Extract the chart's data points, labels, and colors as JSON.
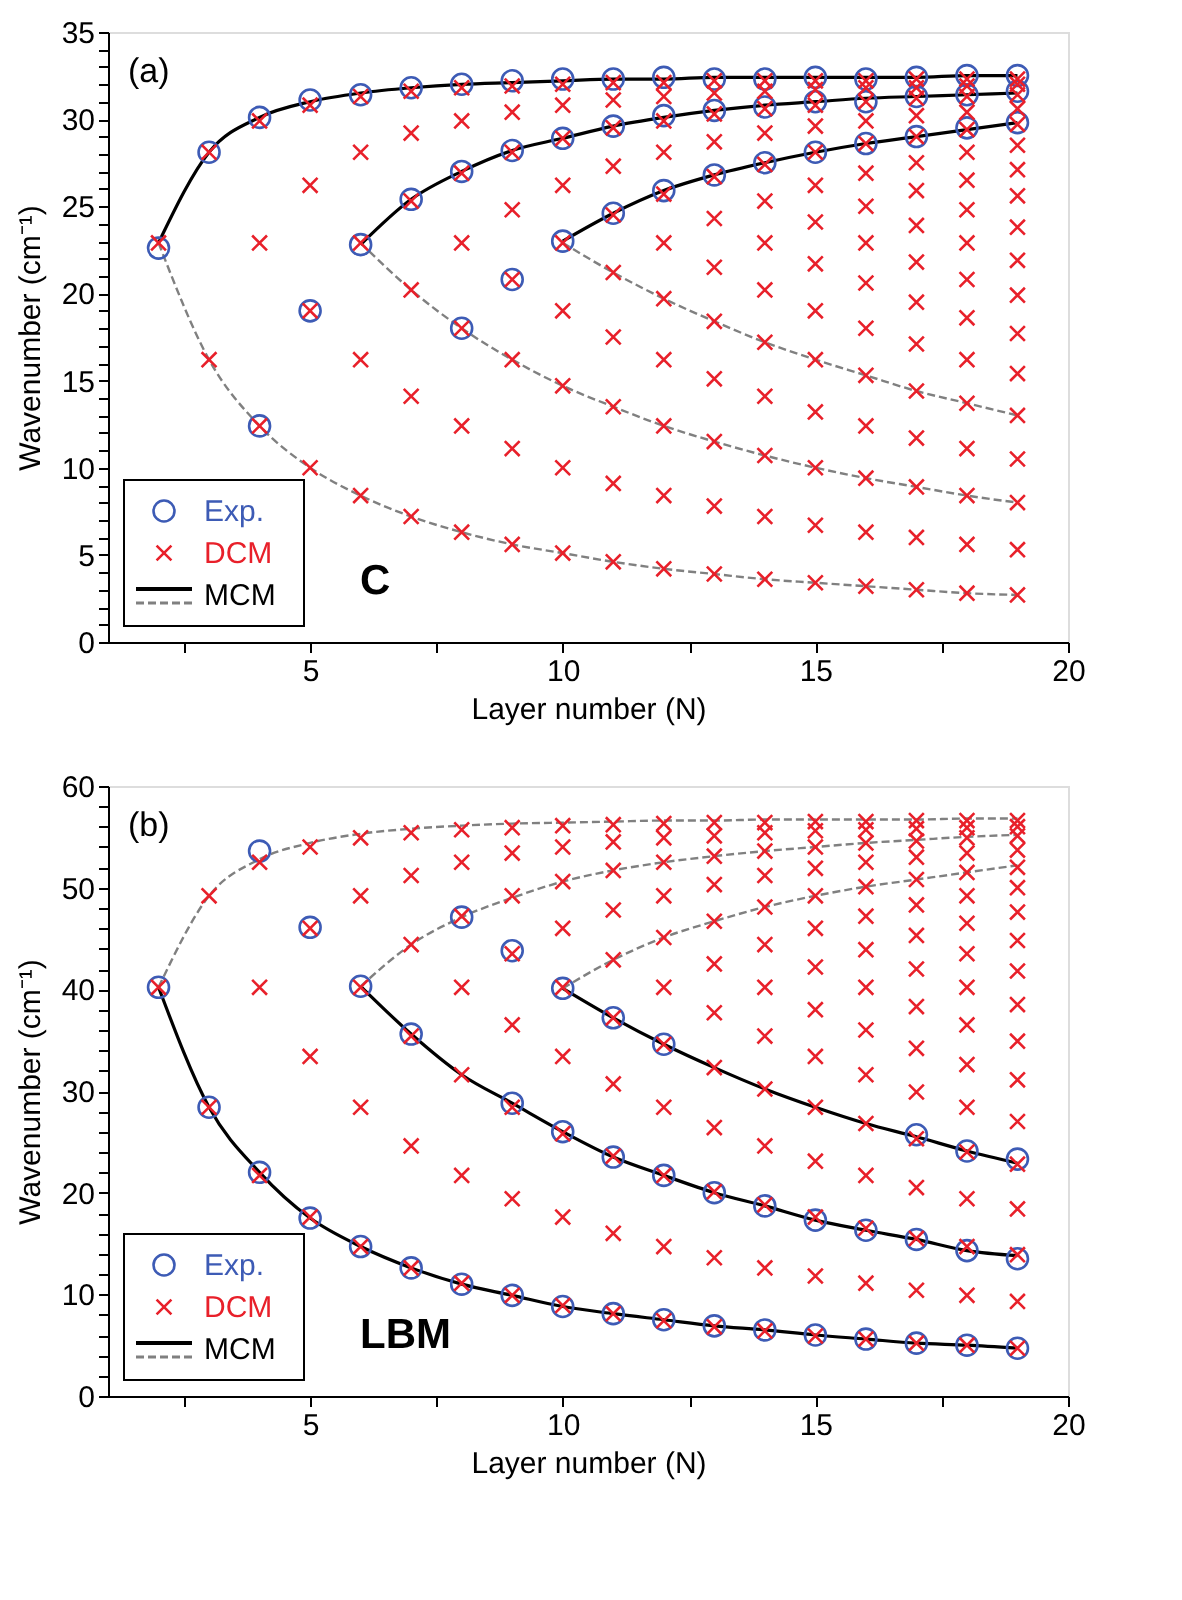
{
  "chart_data": [
    {
      "type": "scatter",
      "xlabel": "Layer number (N)",
      "ylabel": "Wavenumber (cm⁻¹)",
      "annotations": [
        "(a)",
        "C"
      ],
      "legend": "bottom left",
      "xlim": [
        1,
        20
      ],
      "xticks": [
        {
          "value": 2.5,
          "label": null
        },
        5,
        {
          "value": 7.5,
          "label": null
        },
        10,
        {
          "value": 12.5,
          "label": null
        },
        15,
        {
          "value": 17.5,
          "label": null
        },
        20
      ],
      "ylim": [
        0,
        35
      ],
      "yticks": [
        0,
        {
          "value": 1,
          "label": null
        },
        {
          "value": 2,
          "label": null
        },
        {
          "value": 3,
          "label": null
        },
        {
          "value": 4,
          "label": null
        },
        5,
        {
          "value": 6,
          "label": null
        },
        {
          "value": 7,
          "label": null
        },
        {
          "value": 8,
          "label": null
        },
        {
          "value": 9,
          "label": null
        },
        10,
        {
          "value": 11,
          "label": null
        },
        {
          "value": 12,
          "label": null
        },
        {
          "value": 13,
          "label": null
        },
        {
          "value": 14,
          "label": null
        },
        15,
        {
          "value": 16,
          "label": null
        },
        {
          "value": 17,
          "label": null
        },
        {
          "value": 18,
          "label": null
        },
        {
          "value": 19,
          "label": null
        },
        20,
        {
          "value": 21,
          "label": null
        },
        {
          "value": 22,
          "label": null
        },
        {
          "value": 23,
          "label": null
        },
        {
          "value": 24,
          "label": null
        },
        25,
        {
          "value": 26,
          "label": null
        },
        {
          "value": 27,
          "label": null
        },
        {
          "value": 28,
          "label": null
        },
        {
          "value": 29,
          "label": null
        },
        30,
        {
          "value": 31,
          "label": null
        },
        {
          "value": 32,
          "label": null
        },
        {
          "value": 33,
          "label": null
        },
        {
          "value": 34,
          "label": null
        },
        35
      ],
      "series": [
        {
          "name": "Exp.",
          "marker": "circle",
          "color": "#3d5bb5",
          "x": [
            2,
            3,
            4,
            4,
            5,
            5,
            6,
            6,
            7,
            7,
            8,
            8,
            8,
            9,
            9,
            9,
            10,
            10,
            10,
            11,
            11,
            11,
            12,
            12,
            12,
            13,
            13,
            13,
            14,
            14,
            14,
            15,
            15,
            15,
            16,
            16,
            16,
            17,
            17,
            17,
            18,
            18,
            18,
            19,
            19,
            19
          ],
          "values": [
            22.6,
            28.1,
            30.1,
            12.4,
            31.1,
            19.0,
            31.4,
            22.8,
            31.8,
            25.4,
            32.0,
            27.0,
            18.0,
            32.2,
            28.2,
            20.8,
            32.3,
            28.9,
            23.0,
            32.3,
            29.6,
            24.6,
            32.4,
            30.2,
            25.9,
            32.3,
            30.5,
            26.8,
            32.3,
            30.7,
            27.5,
            32.4,
            31.0,
            28.1,
            32.3,
            31.0,
            28.6,
            32.4,
            31.3,
            29.0,
            32.5,
            31.4,
            29.5,
            32.5,
            31.6,
            29.8
          ]
        },
        {
          "name": "DCM",
          "marker": "cross",
          "color": "#e8202a",
          "x": [
            2,
            3,
            3,
            4,
            4,
            4,
            5,
            5,
            5,
            5,
            6,
            6,
            6,
            6,
            6,
            7,
            7,
            7,
            7,
            7,
            7,
            8,
            8,
            8,
            8,
            8,
            8,
            8,
            9,
            9,
            9,
            9,
            9,
            9,
            9,
            9,
            10,
            10,
            10,
            10,
            10,
            10,
            10,
            10,
            10,
            11,
            11,
            11,
            11,
            11,
            11,
            11,
            11,
            11,
            11,
            12,
            12,
            12,
            12,
            12,
            12,
            12,
            12,
            12,
            12,
            12,
            13,
            13,
            13,
            13,
            13,
            13,
            13,
            13,
            13,
            13,
            13,
            13,
            14,
            14,
            14,
            14,
            14,
            14,
            14,
            14,
            14,
            14,
            14,
            14,
            14,
            15,
            15,
            15,
            15,
            15,
            15,
            15,
            15,
            15,
            15,
            15,
            15,
            15,
            15,
            16,
            16,
            16,
            16,
            16,
            16,
            16,
            16,
            16,
            16,
            16,
            16,
            16,
            16,
            16,
            17,
            17,
            17,
            17,
            17,
            17,
            17,
            17,
            17,
            17,
            17,
            17,
            17,
            17,
            17,
            17,
            18,
            18,
            18,
            18,
            18,
            18,
            18,
            18,
            18,
            18,
            18,
            18,
            18,
            18,
            18,
            18,
            18,
            19,
            19,
            19,
            19,
            19,
            19,
            19,
            19,
            19,
            19,
            19,
            19,
            19,
            19,
            19,
            19,
            19,
            19
          ],
          "values": [
            22.9,
            28.1,
            16.2,
            29.9,
            22.9,
            12.4,
            30.8,
            26.2,
            19.0,
            10.0,
            31.3,
            28.1,
            22.9,
            16.2,
            8.4,
            31.6,
            29.2,
            25.3,
            20.2,
            14.1,
            7.2,
            31.8,
            29.9,
            26.9,
            22.9,
            18.0,
            12.4,
            6.3,
            31.9,
            30.4,
            28.1,
            24.8,
            20.8,
            16.2,
            11.1,
            5.6,
            32.0,
            30.8,
            28.9,
            26.2,
            22.9,
            19.0,
            14.7,
            10.0,
            5.1,
            32.1,
            31.1,
            29.5,
            27.3,
            24.5,
            21.2,
            17.5,
            13.5,
            9.1,
            4.6,
            32.1,
            31.3,
            29.9,
            28.1,
            25.7,
            22.9,
            19.7,
            16.2,
            12.4,
            8.4,
            4.2,
            32.2,
            31.5,
            30.3,
            28.7,
            26.7,
            24.3,
            21.5,
            18.4,
            15.1,
            11.5,
            7.8,
            3.9,
            32.2,
            31.6,
            30.6,
            29.2,
            27.4,
            25.3,
            22.9,
            20.2,
            17.2,
            14.1,
            10.7,
            7.2,
            3.6,
            32.2,
            31.7,
            30.8,
            29.6,
            28.1,
            26.2,
            24.1,
            21.7,
            19.0,
            16.2,
            13.2,
            10.0,
            6.7,
            3.4,
            32.2,
            31.8,
            31.0,
            29.9,
            28.6,
            26.9,
            25.0,
            22.9,
            20.6,
            18.0,
            15.3,
            12.4,
            9.4,
            6.3,
            3.2,
            32.3,
            31.8,
            31.2,
            30.2,
            29.0,
            27.5,
            25.9,
            23.9,
            21.8,
            19.5,
            17.1,
            14.4,
            11.7,
            8.9,
            6.0,
            3.0,
            32.3,
            31.9,
            31.3,
            30.4,
            29.4,
            28.1,
            26.5,
            24.8,
            22.9,
            20.8,
            18.6,
            16.2,
            13.7,
            11.1,
            8.4,
            5.6,
            2.8,
            32.3,
            32.0,
            31.4,
            30.6,
            29.7,
            28.5,
            27.1,
            25.6,
            23.8,
            21.9,
            19.9,
            17.7,
            15.4,
            13.0,
            10.5,
            8.0,
            5.3,
            2.7
          ]
        },
        {
          "name": "MCM",
          "type": "line",
          "marker": "none",
          "line_style": "solid",
          "color": "#000000",
          "x": [
            2,
            3,
            4,
            5,
            6,
            7,
            8,
            9,
            10,
            11,
            12,
            13,
            14,
            15,
            16,
            17,
            18,
            19
          ],
          "values": [
            22.9,
            28.1,
            30.1,
            31.0,
            31.5,
            31.8,
            32.0,
            32.1,
            32.2,
            32.3,
            32.3,
            32.4,
            32.4,
            32.4,
            32.4,
            32.4,
            32.5,
            32.5
          ]
        },
        {
          "type": "line",
          "marker": "none",
          "line_style": "solid",
          "color": "#000000",
          "x": [
            6,
            7,
            8,
            9,
            10,
            11,
            12,
            13,
            14,
            15,
            16,
            17,
            18,
            19
          ],
          "values": [
            22.8,
            25.4,
            27.0,
            28.2,
            28.9,
            29.6,
            30.1,
            30.5,
            30.8,
            31.0,
            31.2,
            31.3,
            31.4,
            31.5
          ]
        },
        {
          "type": "line",
          "marker": "none",
          "line_style": "solid",
          "color": "#000000",
          "x": [
            10,
            11,
            12,
            13,
            14,
            15,
            16,
            17,
            18,
            19
          ],
          "values": [
            23.0,
            24.6,
            25.9,
            26.8,
            27.5,
            28.1,
            28.6,
            29.0,
            29.4,
            29.8
          ]
        },
        {
          "type": "line",
          "marker": "none",
          "line_style": "dashed",
          "color": "#808080",
          "x": [
            2,
            3,
            4,
            5,
            6,
            7,
            8,
            9,
            10,
            11,
            12,
            13,
            14,
            15,
            16,
            17,
            18,
            19
          ],
          "values": [
            22.9,
            16.2,
            12.4,
            10.0,
            8.4,
            7.2,
            6.3,
            5.6,
            5.1,
            4.6,
            4.2,
            3.9,
            3.6,
            3.4,
            3.2,
            3.0,
            2.8,
            2.7
          ]
        },
        {
          "type": "line",
          "marker": "none",
          "line_style": "dashed",
          "color": "#808080",
          "x": [
            6,
            7,
            8,
            9,
            10,
            11,
            12,
            13,
            14,
            15,
            16,
            17,
            18,
            19
          ],
          "values": [
            22.9,
            20.2,
            18.0,
            16.2,
            14.7,
            13.5,
            12.4,
            11.5,
            10.7,
            10.0,
            9.4,
            8.9,
            8.4,
            8.0
          ]
        },
        {
          "type": "line",
          "marker": "none",
          "line_style": "dashed",
          "color": "#808080",
          "x": [
            10,
            11,
            12,
            13,
            14,
            15,
            16,
            17,
            18,
            19
          ],
          "values": [
            22.9,
            21.2,
            19.7,
            18.4,
            17.2,
            16.2,
            15.3,
            14.4,
            13.7,
            13.0
          ]
        }
      ]
    },
    {
      "type": "scatter",
      "xlabel": "Layer number (N)",
      "ylabel": "Wavenumber (cm⁻¹)",
      "annotations": [
        "(b)",
        "LBM"
      ],
      "legend": "bottom left",
      "xlim": [
        1,
        20
      ],
      "xticks": [
        {
          "value": 2.5,
          "label": null
        },
        5,
        {
          "value": 7.5,
          "label": null
        },
        10,
        {
          "value": 12.5,
          "label": null
        },
        15,
        {
          "value": 17.5,
          "label": null
        },
        20
      ],
      "ylim": [
        0,
        60
      ],
      "yticks": [
        0,
        {
          "value": 2,
          "label": null
        },
        {
          "value": 4,
          "label": null
        },
        {
          "value": 6,
          "label": null
        },
        {
          "value": 8,
          "label": null
        },
        10,
        {
          "value": 12,
          "label": null
        },
        {
          "value": 14,
          "label": null
        },
        {
          "value": 16,
          "label": null
        },
        {
          "value": 18,
          "label": null
        },
        20,
        {
          "value": 22,
          "label": null
        },
        {
          "value": 24,
          "label": null
        },
        {
          "value": 26,
          "label": null
        },
        {
          "value": 28,
          "label": null
        },
        30,
        {
          "value": 32,
          "label": null
        },
        {
          "value": 34,
          "label": null
        },
        {
          "value": 36,
          "label": null
        },
        {
          "value": 38,
          "label": null
        },
        40,
        {
          "value": 42,
          "label": null
        },
        {
          "value": 44,
          "label": null
        },
        {
          "value": 46,
          "label": null
        },
        {
          "value": 48,
          "label": null
        },
        50,
        {
          "value": 52,
          "label": null
        },
        {
          "value": 54,
          "label": null
        },
        {
          "value": 56,
          "label": null
        },
        {
          "value": 58,
          "label": null
        },
        60
      ],
      "series": [
        {
          "name": "Exp.",
          "marker": "circle",
          "color": "#3d5bb5",
          "x": [
            2,
            3,
            4,
            4,
            5,
            5,
            6,
            6,
            7,
            7,
            8,
            8,
            9,
            9,
            9,
            10,
            10,
            10,
            11,
            11,
            11,
            12,
            12,
            12,
            13,
            13,
            14,
            14,
            15,
            15,
            16,
            16,
            17,
            17,
            17,
            18,
            18,
            18,
            19,
            19,
            19
          ],
          "values": [
            40.2,
            28.4,
            22.0,
            53.6,
            17.5,
            46.1,
            14.7,
            40.3,
            12.6,
            35.6,
            11.0,
            47.1,
            9.9,
            43.8,
            28.8,
            8.8,
            26.0,
            40.1,
            8.1,
            23.5,
            37.2,
            7.5,
            21.7,
            34.6,
            6.9,
            20.0,
            6.5,
            18.7,
            6.0,
            17.3,
            5.6,
            16.3,
            5.2,
            15.4,
            25.7,
            5.0,
            14.3,
            24.1,
            4.7,
            13.5,
            23.3
          ]
        },
        {
          "name": "DCM",
          "marker": "cross",
          "color": "#e8202a",
          "x": [
            2,
            3,
            3,
            4,
            4,
            4,
            5,
            5,
            5,
            5,
            6,
            6,
            6,
            6,
            6,
            7,
            7,
            7,
            7,
            7,
            7,
            8,
            8,
            8,
            8,
            8,
            8,
            8,
            9,
            9,
            9,
            9,
            9,
            9,
            9,
            9,
            10,
            10,
            10,
            10,
            10,
            10,
            10,
            10,
            10,
            11,
            11,
            11,
            11,
            11,
            11,
            11,
            11,
            11,
            11,
            12,
            12,
            12,
            12,
            12,
            12,
            12,
            12,
            12,
            12,
            12,
            13,
            13,
            13,
            13,
            13,
            13,
            13,
            13,
            13,
            13,
            13,
            13,
            14,
            14,
            14,
            14,
            14,
            14,
            14,
            14,
            14,
            14,
            14,
            14,
            14,
            15,
            15,
            15,
            15,
            15,
            15,
            15,
            15,
            15,
            15,
            15,
            15,
            15,
            15,
            16,
            16,
            16,
            16,
            16,
            16,
            16,
            16,
            16,
            16,
            16,
            16,
            16,
            16,
            16,
            17,
            17,
            17,
            17,
            17,
            17,
            17,
            17,
            17,
            17,
            17,
            17,
            17,
            17,
            17,
            17,
            18,
            18,
            18,
            18,
            18,
            18,
            18,
            18,
            18,
            18,
            18,
            18,
            18,
            18,
            18,
            18,
            18,
            19,
            19,
            19,
            19,
            19,
            19,
            19,
            19,
            19,
            19,
            19,
            19,
            19,
            19,
            19,
            19,
            19,
            19
          ],
          "values": [
            40.2,
            49.2,
            28.4,
            52.5,
            40.2,
            21.7,
            54.0,
            46.0,
            33.4,
            17.6,
            54.9,
            49.2,
            40.2,
            28.4,
            14.7,
            55.4,
            51.2,
            44.4,
            35.4,
            24.6,
            12.6,
            55.7,
            52.5,
            47.2,
            40.2,
            31.6,
            21.7,
            11.1,
            55.9,
            53.4,
            49.2,
            43.5,
            36.5,
            28.4,
            19.4,
            9.9,
            56.1,
            54.0,
            50.6,
            46.0,
            40.2,
            33.4,
            25.8,
            17.6,
            8.9,
            56.2,
            54.5,
            51.7,
            47.8,
            42.9,
            37.2,
            30.7,
            23.6,
            16.0,
            8.1,
            56.3,
            54.9,
            52.5,
            49.2,
            45.1,
            40.2,
            34.6,
            28.4,
            21.7,
            14.7,
            7.4,
            56.4,
            55.1,
            53.1,
            50.3,
            46.7,
            42.5,
            37.7,
            32.3,
            26.4,
            20.1,
            13.6,
            6.8,
            56.4,
            55.4,
            53.6,
            51.2,
            48.1,
            44.4,
            40.2,
            35.4,
            30.2,
            24.6,
            18.8,
            12.6,
            6.4,
            56.5,
            55.6,
            54.0,
            51.9,
            49.2,
            46.0,
            42.2,
            38.0,
            33.4,
            28.4,
            23.1,
            17.6,
            11.8,
            5.9,
            56.5,
            55.7,
            54.4,
            52.5,
            50.1,
            47.2,
            43.9,
            40.2,
            36.0,
            31.6,
            26.8,
            21.7,
            16.5,
            11.1,
            5.6,
            56.6,
            55.8,
            54.6,
            53.0,
            50.8,
            48.3,
            45.3,
            42.0,
            38.3,
            34.2,
            29.9,
            25.3,
            20.5,
            15.5,
            10.4,
            5.2,
            56.6,
            55.9,
            54.9,
            53.4,
            51.5,
            49.2,
            46.5,
            43.5,
            40.2,
            36.5,
            32.6,
            28.4,
            24.0,
            19.4,
            14.7,
            9.9,
            5.0,
            56.6,
            56.0,
            55.1,
            53.7,
            52.0,
            50.0,
            47.6,
            44.8,
            41.8,
            38.5,
            34.9,
            31.1,
            27.0,
            22.8,
            18.4,
            13.9,
            9.3,
            4.7
          ]
        },
        {
          "name": "MCM",
          "type": "line",
          "marker": "none",
          "line_style": "solid",
          "color": "#000000",
          "x": [
            2,
            3,
            4,
            5,
            6,
            7,
            8,
            9,
            10,
            11,
            12,
            13,
            14,
            15,
            16,
            17,
            18,
            19
          ],
          "values": [
            40.2,
            28.4,
            22.0,
            17.5,
            14.7,
            12.6,
            11.0,
            9.9,
            8.8,
            8.1,
            7.5,
            6.9,
            6.5,
            6.0,
            5.6,
            5.2,
            5.0,
            4.7
          ]
        },
        {
          "type": "line",
          "marker": "none",
          "line_style": "solid",
          "color": "#000000",
          "x": [
            6,
            7,
            8,
            9,
            10,
            11,
            12,
            13,
            14,
            15,
            16,
            17,
            18,
            19
          ],
          "values": [
            40.3,
            35.6,
            31.6,
            28.8,
            26.0,
            23.5,
            21.7,
            20.0,
            18.7,
            17.3,
            16.3,
            15.4,
            14.3,
            13.8
          ]
        },
        {
          "type": "line",
          "marker": "none",
          "line_style": "solid",
          "color": "#000000",
          "x": [
            10,
            11,
            12,
            13,
            14,
            15,
            16,
            17,
            18,
            19
          ],
          "values": [
            40.1,
            37.2,
            34.6,
            32.3,
            30.2,
            28.4,
            26.8,
            25.5,
            24.1,
            22.9
          ]
        },
        {
          "type": "line",
          "marker": "none",
          "line_style": "dashed",
          "color": "#808080",
          "x": [
            2,
            3,
            4,
            5,
            6,
            7,
            8,
            9,
            10,
            11,
            12,
            13,
            14,
            15,
            16,
            17,
            18,
            19
          ],
          "values": [
            40.2,
            49.2,
            52.8,
            54.4,
            55.3,
            55.8,
            56.1,
            56.3,
            56.4,
            56.5,
            56.6,
            56.6,
            56.7,
            56.7,
            56.7,
            56.7,
            56.8,
            56.8
          ]
        },
        {
          "type": "line",
          "marker": "none",
          "line_style": "dashed",
          "color": "#808080",
          "x": [
            6,
            7,
            8,
            9,
            10,
            11,
            12,
            13,
            14,
            15,
            16,
            17,
            18,
            19
          ],
          "values": [
            40.3,
            44.4,
            47.1,
            49.0,
            50.6,
            51.7,
            52.5,
            53.1,
            53.6,
            54.0,
            54.4,
            54.7,
            55.0,
            55.2
          ]
        },
        {
          "type": "line",
          "marker": "none",
          "line_style": "dashed",
          "color": "#808080",
          "x": [
            10,
            11,
            12,
            13,
            14,
            15,
            16,
            17,
            18,
            19
          ],
          "values": [
            40.1,
            42.9,
            45.1,
            46.7,
            48.1,
            49.2,
            50.1,
            50.8,
            51.5,
            52.2
          ]
        }
      ]
    }
  ]
}
